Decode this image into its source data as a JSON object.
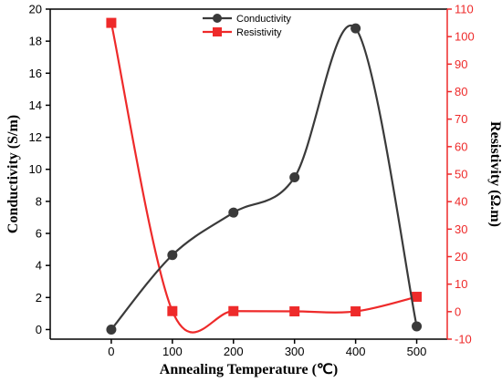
{
  "chart_data": {
    "type": "line",
    "x": [
      0,
      100,
      200,
      300,
      400,
      500
    ],
    "xlabel": "Annealing Temperature (℃)",
    "xlim": [
      -100,
      550
    ],
    "xticks": [
      0,
      100,
      200,
      300,
      400,
      500
    ],
    "series": [
      {
        "name": "Conductivity",
        "axis": "left",
        "marker": "circle",
        "color": "#3a3a3a",
        "values": [
          0.0,
          4.65,
          7.3,
          9.5,
          18.8,
          0.2
        ]
      },
      {
        "name": "Resistivity",
        "axis": "right",
        "marker": "square",
        "color": "#ee2a2a",
        "values": [
          105,
          0.2,
          0.2,
          0.1,
          0.1,
          5.4
        ]
      }
    ],
    "y_left": {
      "label": "Conductivity (S/m)",
      "range": [
        -0.6,
        20
      ],
      "ticks": [
        0,
        2,
        4,
        6,
        8,
        10,
        12,
        14,
        16,
        18,
        20
      ],
      "color": "#000000"
    },
    "y_right": {
      "label": "Resistivity (Ω.m)",
      "range": [
        -10,
        110
      ],
      "ticks": [
        -10,
        0,
        10,
        20,
        30,
        40,
        50,
        60,
        70,
        80,
        90,
        100,
        110
      ],
      "color": "#ee2a2a"
    },
    "legend": "top-center",
    "grid": false
  }
}
